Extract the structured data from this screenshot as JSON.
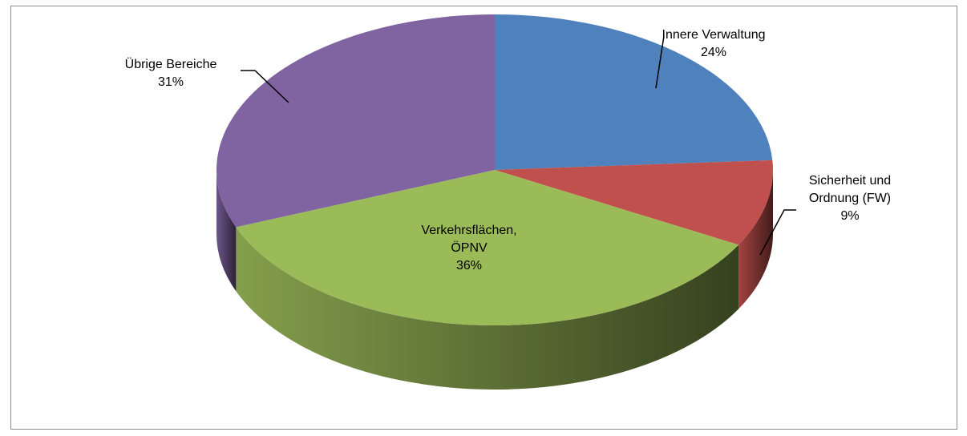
{
  "chart_data": {
    "type": "pie3d",
    "categories": [
      "Innere Verwaltung",
      "Sicherheit und Ordnung (FW)",
      "Verkehrsflächen, ÖPNV",
      "Übrige Bereiche"
    ],
    "values": [
      24,
      9,
      36,
      31
    ],
    "value_labels": [
      "24%",
      "9%",
      "36%",
      "31%"
    ],
    "colors": [
      "#4f81bd",
      "#c0504d",
      "#9bbb59",
      "#8064a2"
    ]
  }
}
